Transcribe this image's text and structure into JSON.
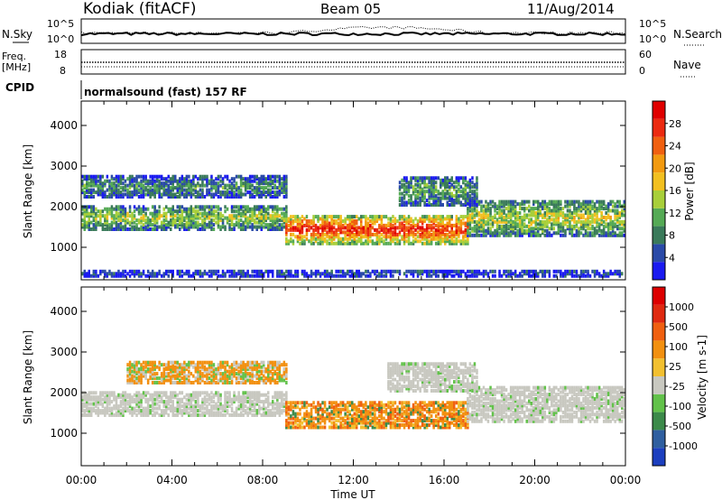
{
  "header": {
    "station": "Kodiak (fitACF)",
    "beam": "Beam 05",
    "date": "11/Aug/2014"
  },
  "top_panels": {
    "nsky_label": "N.Sky",
    "nsearch_label": "N.Search",
    "nsky_ticks": [
      "10^5",
      "10^0"
    ],
    "nsearch_ticks": [
      "10^5",
      "10^0"
    ],
    "freq_label": "Freq.",
    "freq_unit": "[MHz]",
    "freq_ticks": [
      "18",
      "8"
    ],
    "nave_label": "Nave",
    "nave_ticks": [
      "60",
      "0"
    ],
    "cpid_label": "CPID",
    "cpid_value": "normalsound (fast) 157 RF"
  },
  "chart_data": [
    {
      "type": "heatmap",
      "name": "power-panel",
      "xlabel": "Time UT",
      "ylabel": "Slant Range [km]",
      "x_ticks": [
        "00:00",
        "04:00",
        "08:00",
        "12:00",
        "16:00",
        "20:00",
        "00:00"
      ],
      "y_ticks": [
        "1000",
        "2000",
        "3000",
        "4000"
      ],
      "ylim": [
        200,
        4600
      ],
      "xlim_hours": [
        0,
        24
      ],
      "colorbar": {
        "label": "Power [dB]",
        "ticks": [
          "4",
          "8",
          "12",
          "16",
          "20",
          "24",
          "28"
        ],
        "colors": [
          "#1a1af0",
          "#2a4aa8",
          "#3a7a5a",
          "#55aa55",
          "#a8cf3a",
          "#f2c020",
          "#f29a10",
          "#f06010",
          "#ec2a10",
          "#e00000"
        ]
      },
      "bands": [
        {
          "t": [
            0,
            9
          ],
          "range": [
            1400,
            2000
          ],
          "level": 0.45
        },
        {
          "t": [
            9,
            17
          ],
          "range": [
            1050,
            1750
          ],
          "level": 0.9
        },
        {
          "t": [
            17,
            24
          ],
          "range": [
            1250,
            2100
          ],
          "level": 0.5
        },
        {
          "t": [
            0,
            9
          ],
          "range": [
            2200,
            2700
          ],
          "level": 0.3
        },
        {
          "t": [
            14,
            17.5
          ],
          "range": [
            2000,
            2700
          ],
          "level": 0.35
        },
        {
          "t": [
            0,
            24
          ],
          "range": [
            250,
            400
          ],
          "level": 0.15
        }
      ]
    },
    {
      "type": "heatmap",
      "name": "velocity-panel",
      "xlabel": "Time UT",
      "ylabel": "Slant Range [km]",
      "x_ticks": [
        "00:00",
        "04:00",
        "08:00",
        "12:00",
        "16:00",
        "20:00",
        "00:00"
      ],
      "y_ticks": [
        "1000",
        "2000",
        "3000",
        "4000"
      ],
      "ylim": [
        200,
        4600
      ],
      "xlim_hours": [
        0,
        24
      ],
      "colorbar": {
        "label": "Velocity [m s-1]",
        "ticks": [
          "1000",
          "500",
          "100",
          "25",
          "-25",
          "-100",
          "-500",
          "-1000"
        ],
        "colors": [
          "#1c3fbf",
          "#2f5fa0",
          "#3c8a4a",
          "#62c24a",
          "#c8c8c0",
          "#f2c030",
          "#f29010",
          "#f06010",
          "#e02a10",
          "#dd0000"
        ]
      },
      "bands": [
        {
          "t": [
            0,
            9
          ],
          "range": [
            1400,
            2000
          ],
          "kind": "ground"
        },
        {
          "t": [
            9,
            17
          ],
          "range": [
            1100,
            1750
          ],
          "kind": "mixed"
        },
        {
          "t": [
            17,
            24
          ],
          "range": [
            1250,
            2100
          ],
          "kind": "ground"
        },
        {
          "t": [
            2,
            9
          ],
          "range": [
            2200,
            2700
          ],
          "kind": "warm"
        },
        {
          "t": [
            13.5,
            17.5
          ],
          "range": [
            2000,
            2700
          ],
          "kind": "ground"
        }
      ]
    }
  ]
}
